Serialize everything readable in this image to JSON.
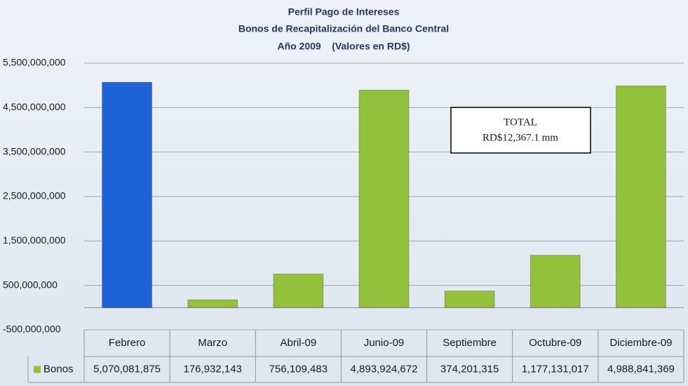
{
  "chart_data": {
    "type": "bar",
    "title": [
      "Perfil Pago de Intereses",
      "Bonos de Recapitalización del Banco Central",
      "Año 2009    (Valores en RD$)"
    ],
    "categories": [
      "Febrero",
      "Marzo",
      "Abril-09",
      "Junio-09",
      "Septiembre",
      "Octubre-09",
      "Diciembre-09"
    ],
    "series": [
      {
        "name": "Bonos",
        "color": "#94c13c",
        "colors": [
          "#1f62d8",
          "#94c13c",
          "#94c13c",
          "#94c13c",
          "#94c13c",
          "#94c13c",
          "#94c13c"
        ],
        "values": [
          5070081875,
          176932143,
          756109483,
          4893924672,
          374201315,
          1177131017,
          4988841369
        ],
        "value_labels": [
          "5,070,081,875",
          "176,932,143",
          "756,109,483",
          "4,893,924,672",
          "374,201,315",
          "1,177,131,017",
          "4,988,841,369"
        ]
      }
    ],
    "ylim": [
      -500000000,
      5500000000
    ],
    "yticks": [
      {
        "value": -500000000,
        "label": "-500,000,000"
      },
      {
        "value": 500000000,
        "label": "500,000,000"
      },
      {
        "value": 1500000000,
        "label": "1,500,000,000"
      },
      {
        "value": 2500000000,
        "label": "2,500,000,000"
      },
      {
        "value": 3500000000,
        "label": "3,500,000,000"
      },
      {
        "value": 4500000000,
        "label": "4,500,000,000"
      },
      {
        "value": 5500000000,
        "label": "5,500,000,000"
      }
    ],
    "grid": true,
    "annotations": [
      "TOTAL",
      "RD$12,367.1 mm"
    ]
  }
}
